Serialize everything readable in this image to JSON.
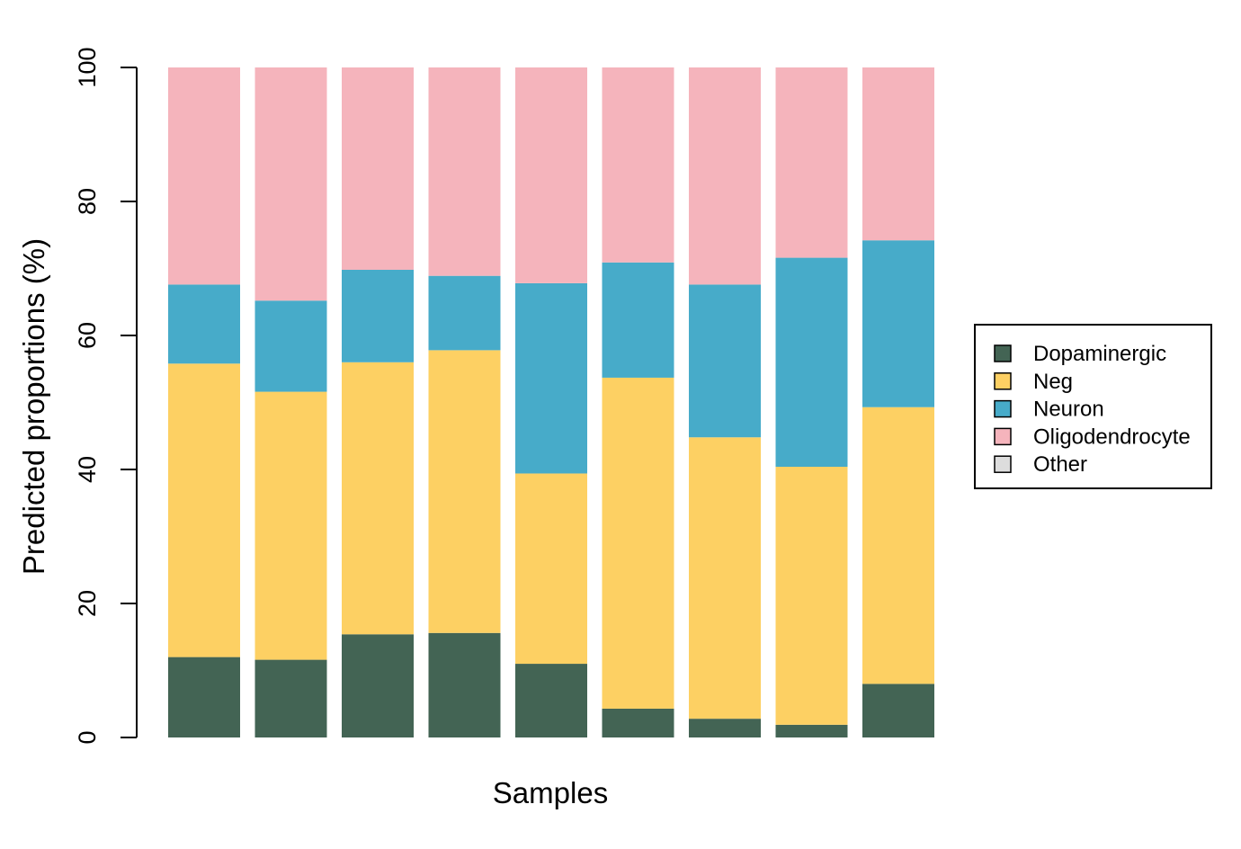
{
  "chart_data": {
    "type": "bar",
    "stacked": true,
    "xlabel": "Samples",
    "ylabel": "Predicted proportions (%)",
    "ylim": [
      0,
      100
    ],
    "yticks": [
      "0",
      "20",
      "40",
      "60",
      "80",
      "100"
    ],
    "grid": false,
    "legend_position": "right",
    "categories_count": 9,
    "series": [
      {
        "name": "Dopaminergic",
        "color": "#436454",
        "values": [
          12.0,
          11.6,
          15.4,
          15.6,
          11.0,
          4.3,
          2.8,
          1.9,
          8.0
        ]
      },
      {
        "name": "Neg",
        "color": "#FDD063",
        "values": [
          43.8,
          40.0,
          40.6,
          42.2,
          28.4,
          49.4,
          42.0,
          38.5,
          41.3
        ]
      },
      {
        "name": "Neuron",
        "color": "#47ABC9",
        "values": [
          11.8,
          13.6,
          13.8,
          11.1,
          28.4,
          17.2,
          22.8,
          31.2,
          24.9
        ]
      },
      {
        "name": "Oligodendrocyte",
        "color": "#F5B4BC",
        "values": [
          32.4,
          34.8,
          30.2,
          31.1,
          32.2,
          29.1,
          32.4,
          28.4,
          25.8
        ]
      },
      {
        "name": "Other",
        "color": "#DDDDDD",
        "values": [
          0,
          0,
          0,
          0,
          0,
          0,
          0,
          0,
          0
        ]
      }
    ]
  }
}
